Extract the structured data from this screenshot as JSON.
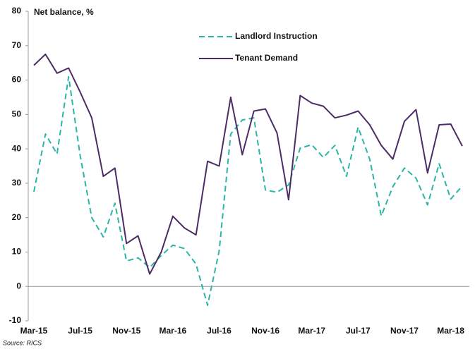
{
  "chart_data": {
    "type": "line",
    "title": "Net balance, %",
    "source": "Source: RICS",
    "categories": [
      "Mar-15",
      null,
      null,
      null,
      "Jul-15",
      null,
      null,
      null,
      "Nov-15",
      null,
      null,
      null,
      "Mar-16",
      null,
      null,
      null,
      "Jul-16",
      null,
      null,
      null,
      "Nov-16",
      null,
      null,
      null,
      "Mar-17",
      null,
      null,
      null,
      "Jul-17",
      null,
      null,
      null,
      "Nov-17",
      null,
      null,
      null,
      "Mar-18",
      null
    ],
    "series": [
      {
        "name": "Landlord Instruction",
        "color": "#2bb5a7",
        "dashed": true,
        "values": [
          27.5,
          44.3,
          38.5,
          61,
          38,
          20,
          14.4,
          24.2,
          7.4,
          8.3,
          5.5,
          9,
          12,
          11,
          6.5,
          -5.5,
          10.3,
          44.3,
          48.4,
          49,
          28,
          27.4,
          29.5,
          40.2,
          41.2,
          37.5,
          41,
          32,
          46.3,
          37,
          20.5,
          29,
          34.4,
          31.5,
          23.7,
          35.7,
          25.4,
          29.2
        ]
      },
      {
        "name": "Tenant Demand",
        "color": "#4b2c66",
        "dashed": false,
        "values": [
          64.3,
          67.5,
          62,
          63.5,
          56.5,
          49,
          32,
          34.4,
          12.5,
          14.7,
          3.6,
          10,
          20.4,
          17,
          15,
          36.4,
          35,
          55,
          38.3,
          51,
          51.6,
          44.6,
          25.2,
          55.5,
          53.3,
          52.4,
          49,
          49.8,
          51,
          47,
          41,
          37,
          48,
          51.4,
          33,
          47,
          47.2,
          40.8
        ]
      }
    ],
    "ylim": [
      -10,
      80
    ],
    "yticks": [
      -10,
      0,
      10,
      20,
      30,
      40,
      50,
      60,
      70,
      80
    ],
    "grid": false
  }
}
